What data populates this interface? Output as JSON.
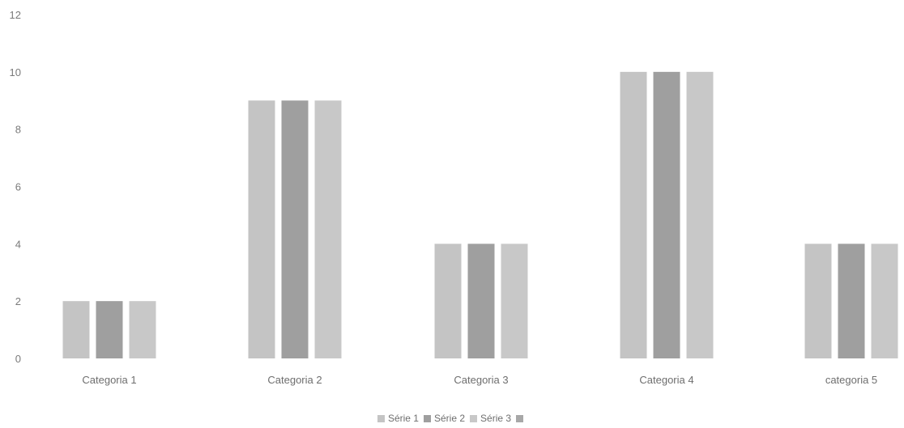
{
  "chart_data": {
    "type": "bar",
    "categories": [
      "Categoria 1",
      "Categoria 2",
      "Categoria 3",
      "Categoria 4",
      "categoria 5"
    ],
    "series": [
      {
        "name": "Série 1",
        "values": [
          2,
          9,
          4,
          10,
          4
        ],
        "color": "#c4c4c4"
      },
      {
        "name": "Série 2",
        "values": [
          2,
          9,
          4,
          10,
          4
        ],
        "color": "#9f9f9f"
      },
      {
        "name": "Série 3",
        "values": [
          2,
          9,
          4,
          10,
          4
        ],
        "color": "#c8c8c8"
      }
    ],
    "extra_legend_swatch_color": "#a8a8a8",
    "ylim": [
      0,
      12
    ],
    "yticks": [
      0,
      2,
      4,
      6,
      8,
      10,
      12
    ],
    "grid": false,
    "legend_position": "bottom"
  }
}
